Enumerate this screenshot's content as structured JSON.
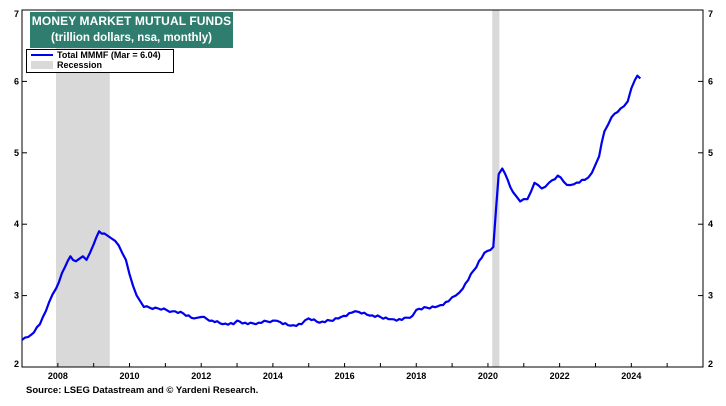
{
  "chart_data": {
    "type": "line",
    "title": "MONEY MARKET MUTUAL FUNDS",
    "subtitle": "(trillion dollars, nsa, monthly)",
    "xlabel": "",
    "ylabel": "",
    "xlim": [
      2007.0,
      2026.0
    ],
    "ylim": [
      2,
      7
    ],
    "x_ticks": [
      2008,
      2010,
      2012,
      2014,
      2016,
      2018,
      2020,
      2022,
      2024
    ],
    "y_ticks": [
      2,
      3,
      4,
      5,
      6,
      7
    ],
    "grid": false,
    "legend_position": "top-left",
    "series": [
      {
        "name": "Total MMMF (Mar = 6.04)",
        "color": "#0000ee",
        "points": [
          [
            2007.0,
            2.38
          ],
          [
            2007.25,
            2.45
          ],
          [
            2007.5,
            2.6
          ],
          [
            2007.75,
            2.9
          ],
          [
            2007.95,
            3.1
          ],
          [
            2008.2,
            3.4
          ],
          [
            2008.35,
            3.55
          ],
          [
            2008.5,
            3.48
          ],
          [
            2008.7,
            3.55
          ],
          [
            2008.8,
            3.5
          ],
          [
            2009.0,
            3.72
          ],
          [
            2009.15,
            3.9
          ],
          [
            2009.3,
            3.87
          ],
          [
            2009.5,
            3.8
          ],
          [
            2009.7,
            3.7
          ],
          [
            2009.9,
            3.5
          ],
          [
            2010.0,
            3.3
          ],
          [
            2010.2,
            3.0
          ],
          [
            2010.4,
            2.84
          ],
          [
            2010.8,
            2.82
          ],
          [
            2011.2,
            2.78
          ],
          [
            2011.5,
            2.75
          ],
          [
            2011.8,
            2.68
          ],
          [
            2012.0,
            2.7
          ],
          [
            2012.3,
            2.65
          ],
          [
            2012.6,
            2.6
          ],
          [
            2012.9,
            2.6
          ],
          [
            2013.0,
            2.65
          ],
          [
            2013.3,
            2.6
          ],
          [
            2013.6,
            2.62
          ],
          [
            2014.0,
            2.65
          ],
          [
            2014.2,
            2.63
          ],
          [
            2014.5,
            2.58
          ],
          [
            2014.8,
            2.6
          ],
          [
            2015.0,
            2.68
          ],
          [
            2015.3,
            2.62
          ],
          [
            2015.6,
            2.65
          ],
          [
            2015.9,
            2.7
          ],
          [
            2016.2,
            2.76
          ],
          [
            2016.4,
            2.77
          ],
          [
            2016.7,
            2.72
          ],
          [
            2017.0,
            2.7
          ],
          [
            2017.3,
            2.67
          ],
          [
            2017.6,
            2.66
          ],
          [
            2017.9,
            2.72
          ],
          [
            2018.0,
            2.8
          ],
          [
            2018.3,
            2.83
          ],
          [
            2018.6,
            2.85
          ],
          [
            2018.9,
            2.92
          ],
          [
            2019.1,
            3.0
          ],
          [
            2019.3,
            3.1
          ],
          [
            2019.6,
            3.35
          ],
          [
            2019.9,
            3.6
          ],
          [
            2020.15,
            3.68
          ],
          [
            2020.3,
            4.7
          ],
          [
            2020.4,
            4.78
          ],
          [
            2020.55,
            4.62
          ],
          [
            2020.7,
            4.45
          ],
          [
            2020.9,
            4.32
          ],
          [
            2021.1,
            4.35
          ],
          [
            2021.3,
            4.58
          ],
          [
            2021.5,
            4.5
          ],
          [
            2021.7,
            4.58
          ],
          [
            2021.95,
            4.68
          ],
          [
            2022.2,
            4.55
          ],
          [
            2022.4,
            4.56
          ],
          [
            2022.7,
            4.62
          ],
          [
            2022.9,
            4.72
          ],
          [
            2023.1,
            4.95
          ],
          [
            2023.25,
            5.3
          ],
          [
            2023.45,
            5.5
          ],
          [
            2023.7,
            5.62
          ],
          [
            2023.9,
            5.72
          ],
          [
            2024.0,
            5.9
          ],
          [
            2024.1,
            6.02
          ],
          [
            2024.17,
            6.08
          ],
          [
            2024.25,
            6.04
          ]
        ]
      }
    ],
    "recessions": [
      [
        2007.95,
        2009.45
      ],
      [
        2020.12,
        2020.32
      ]
    ],
    "recession_color": "#d9d9d9",
    "recession_label": "Recession"
  },
  "title_box_color": "#2e7d6e",
  "source_text": "Source: LSEG Datastream and © Yardeni Research."
}
